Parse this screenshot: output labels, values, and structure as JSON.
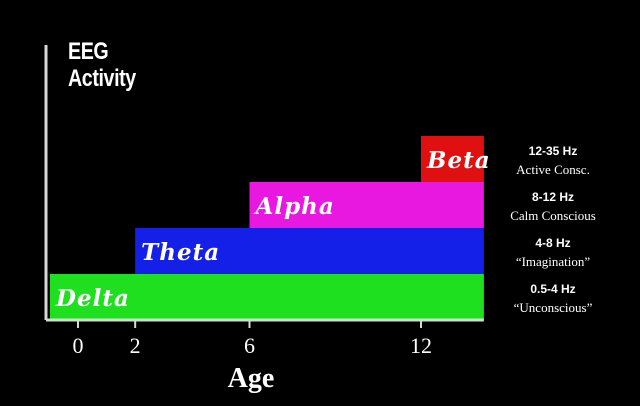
{
  "chart_data": {
    "type": "bar",
    "orientation": "horizontal-stacked-steps",
    "title": "",
    "ylabel_lines": [
      "EEG",
      "Activity"
    ],
    "xlabel": "Age",
    "x_ticks": [
      0,
      2,
      6,
      12
    ],
    "xlim": [
      -1,
      14.2
    ],
    "grid": false,
    "series": [
      {
        "name": "Beta",
        "start_age": 12,
        "end_age": 14.2,
        "freq": "12-35 Hz",
        "desc": "Active Consc.",
        "color": "#e01010"
      },
      {
        "name": "Alpha",
        "start_age": 6,
        "end_age": 14.2,
        "freq": "8-12 Hz",
        "desc": "Calm Conscious",
        "color": "#e818e0"
      },
      {
        "name": "Theta",
        "start_age": 2,
        "end_age": 14.2,
        "freq": "4-8 Hz",
        "desc": "“Imagination”",
        "color": "#1420e8"
      },
      {
        "name": "Delta",
        "start_age": -1,
        "end_age": 14.2,
        "freq": "0.5-4 Hz",
        "desc": "“Unconscious”",
        "color": "#1ee01e"
      }
    ]
  }
}
